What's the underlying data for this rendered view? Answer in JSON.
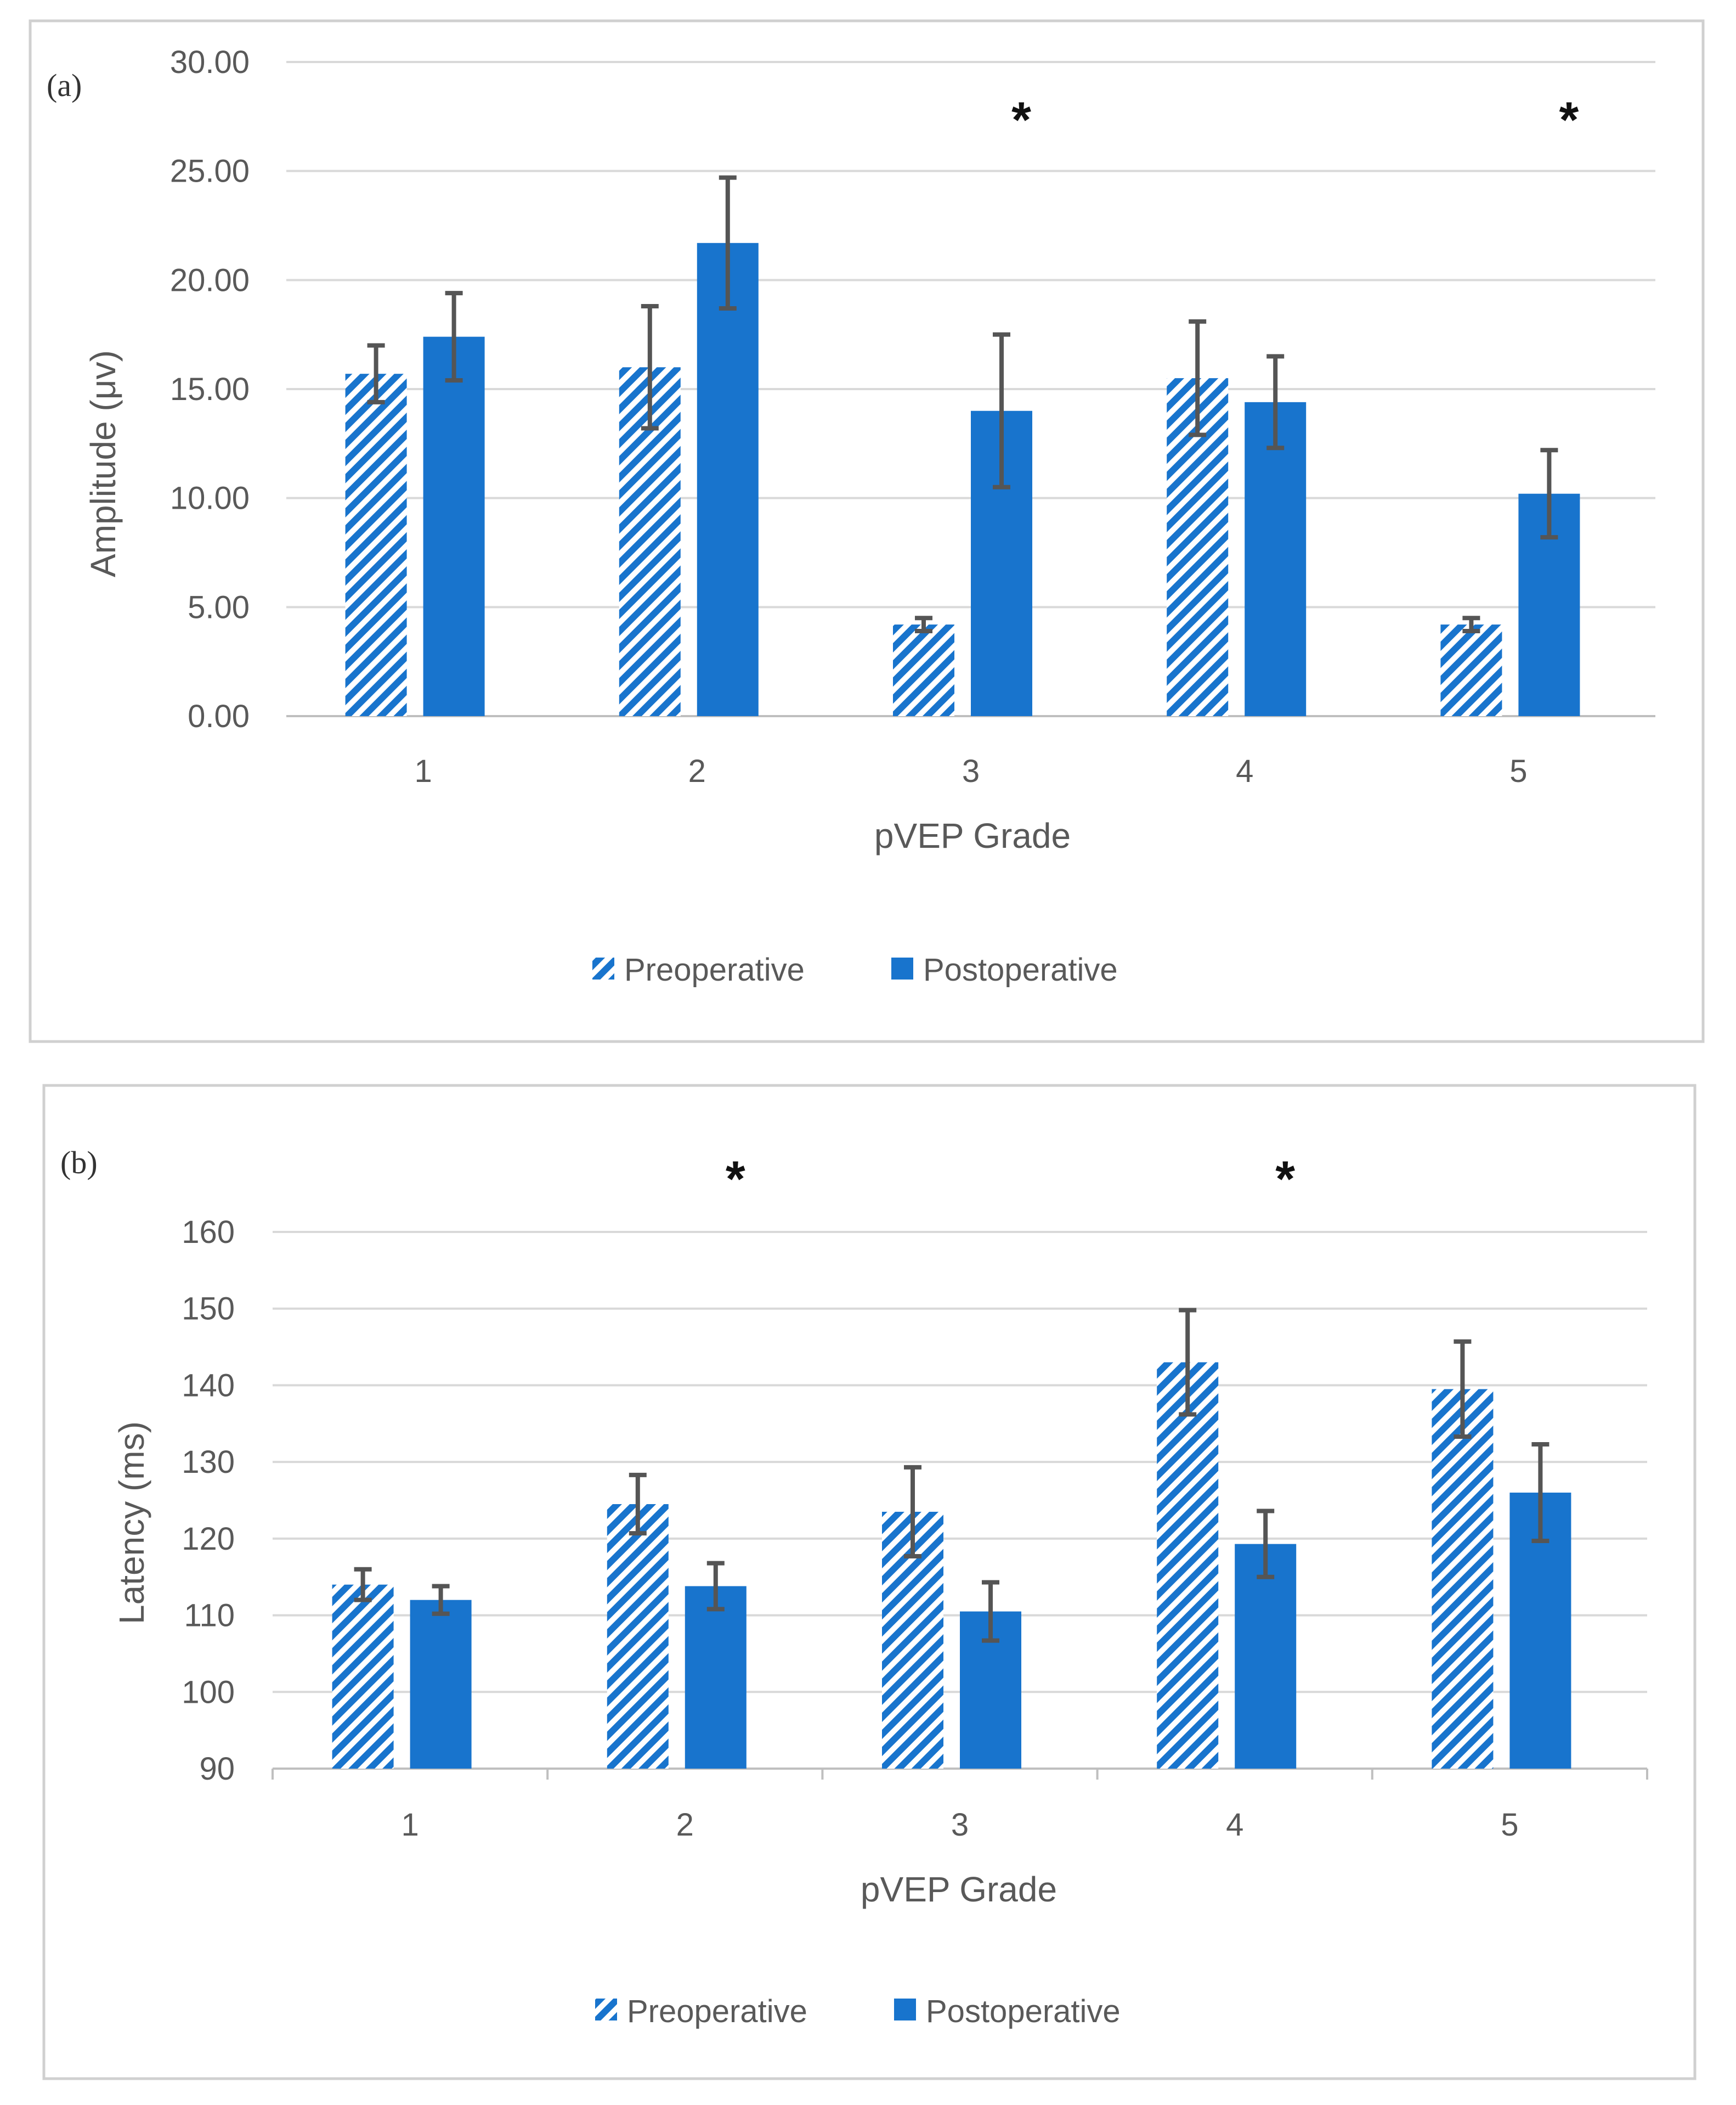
{
  "colors": {
    "accent": "#1874cd",
    "error_bar": "#555555",
    "grid": "#d9d9d9",
    "axis_text": "#595959",
    "frame": "#d0d0d0"
  },
  "legend": {
    "pre_label": "Preoperative",
    "post_label": "Postoperative"
  },
  "chart_data": [
    {
      "type": "bar",
      "panel_label": "(a)",
      "xlabel": "pVEP Grade",
      "ylabel": "Amplitude (μv)",
      "ylim": [
        0,
        30
      ],
      "yticks": [
        0,
        5,
        10,
        15,
        20,
        25,
        30
      ],
      "ytick_labels": [
        "0.00",
        "5.00",
        "10.00",
        "15.00",
        "20.00",
        "25.00",
        "30.00"
      ],
      "categories": [
        "1",
        "2",
        "3",
        "4",
        "5"
      ],
      "series": [
        {
          "name": "Preoperative",
          "pattern": "hatched",
          "values": [
            15.7,
            16.0,
            4.2,
            15.5,
            4.2
          ],
          "errors": [
            1.3,
            2.8,
            0.3,
            2.6,
            0.3
          ]
        },
        {
          "name": "Postoperative",
          "pattern": "solid",
          "values": [
            17.4,
            21.7,
            14.0,
            14.4,
            10.2
          ],
          "errors": [
            2.0,
            3.0,
            3.5,
            2.1,
            2.0
          ]
        }
      ],
      "significance": [
        "",
        "",
        "*",
        "",
        "*"
      ],
      "legend_position": "bottom"
    },
    {
      "type": "bar",
      "panel_label": "(b)",
      "xlabel": "pVEP Grade",
      "ylabel": "Latency (ms)",
      "ylim": [
        90,
        160
      ],
      "yticks": [
        90,
        100,
        110,
        120,
        130,
        140,
        150,
        160
      ],
      "ytick_labels": [
        "90",
        "100",
        "110",
        "120",
        "130",
        "140",
        "150",
        "160"
      ],
      "categories": [
        "1",
        "2",
        "3",
        "4",
        "5"
      ],
      "series": [
        {
          "name": "Preoperative",
          "pattern": "hatched",
          "values": [
            114,
            124.5,
            123.5,
            143,
            139.5
          ],
          "errors": [
            2.0,
            3.8,
            5.8,
            6.8,
            6.2
          ]
        },
        {
          "name": "Postoperative",
          "pattern": "solid",
          "values": [
            112,
            113.8,
            110.5,
            119.3,
            126
          ],
          "errors": [
            1.8,
            3.0,
            3.8,
            4.3,
            6.3
          ]
        }
      ],
      "significance": [
        "",
        "*",
        "",
        "*",
        ""
      ],
      "legend_position": "bottom"
    }
  ]
}
